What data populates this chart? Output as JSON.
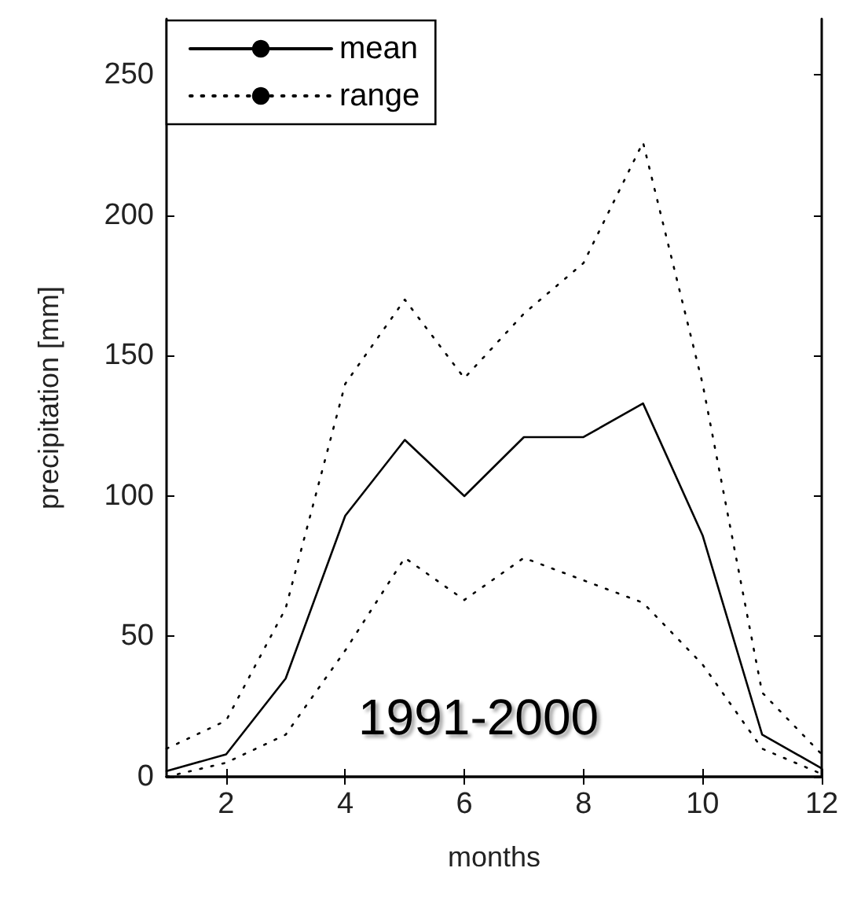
{
  "chart_data": {
    "type": "line",
    "xlabel": "months",
    "ylabel": "precipitation [mm]",
    "annotations": [
      "1991-2000"
    ],
    "x": [
      1,
      2,
      3,
      4,
      5,
      6,
      7,
      8,
      9,
      10,
      11,
      12
    ],
    "series": [
      {
        "name": "mean",
        "color": "#000000",
        "line_style": "solid",
        "values": [
          2,
          8,
          35,
          93,
          120,
          100,
          121,
          121,
          133,
          86,
          15,
          3
        ]
      },
      {
        "name": "range",
        "color": "#000000",
        "line_style": "dotted",
        "values": [
          10,
          20,
          60,
          140,
          170,
          142,
          165,
          183,
          226,
          140,
          30,
          8
        ]
      },
      {
        "color": "#000000",
        "line_style": "dotted",
        "values": [
          0,
          5,
          15,
          45,
          78,
          63,
          78,
          70,
          62,
          40,
          10,
          1
        ]
      }
    ],
    "xlim": [
      1,
      12
    ],
    "xticks": [
      2,
      4,
      6,
      8,
      10,
      12
    ],
    "ylim": [
      0,
      270
    ],
    "yticks": [
      0,
      50,
      100,
      150,
      200,
      250
    ],
    "grid": false,
    "legend": "top left",
    "marker": "none"
  }
}
